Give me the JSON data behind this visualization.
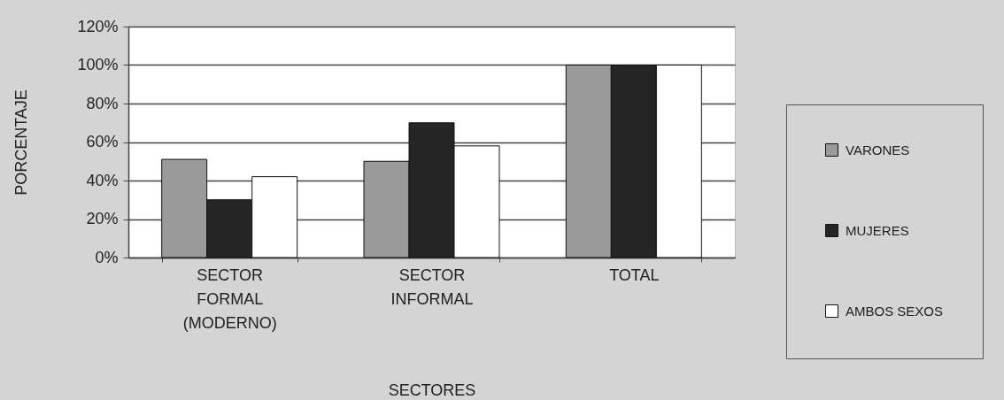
{
  "chart_data": {
    "type": "bar",
    "xlabel": "SECTORES",
    "ylabel": "PORCENTAJE",
    "categories": [
      "SECTOR FORMAL (MODERNO)",
      "SECTOR INFORMAL",
      "TOTAL"
    ],
    "series": [
      {
        "name": "VARONES",
        "color": "#9a9a9a",
        "values": [
          51,
          50,
          100
        ]
      },
      {
        "name": "MUJERES",
        "color": "#262626",
        "values": [
          30,
          70,
          100
        ]
      },
      {
        "name": "AMBOS SEXOS",
        "color": "#ffffff",
        "values": [
          42,
          58,
          100
        ]
      }
    ],
    "ylim": [
      0,
      120
    ],
    "yticks": [
      {
        "value": 0,
        "label": "0%"
      },
      {
        "value": 20,
        "label": "20%"
      },
      {
        "value": 40,
        "label": "40%"
      },
      {
        "value": 60,
        "label": "60%"
      },
      {
        "value": 80,
        "label": "80%"
      },
      {
        "value": 100,
        "label": "100%"
      },
      {
        "value": 120,
        "label": "120%"
      }
    ],
    "grid": "y",
    "legend": "right"
  }
}
